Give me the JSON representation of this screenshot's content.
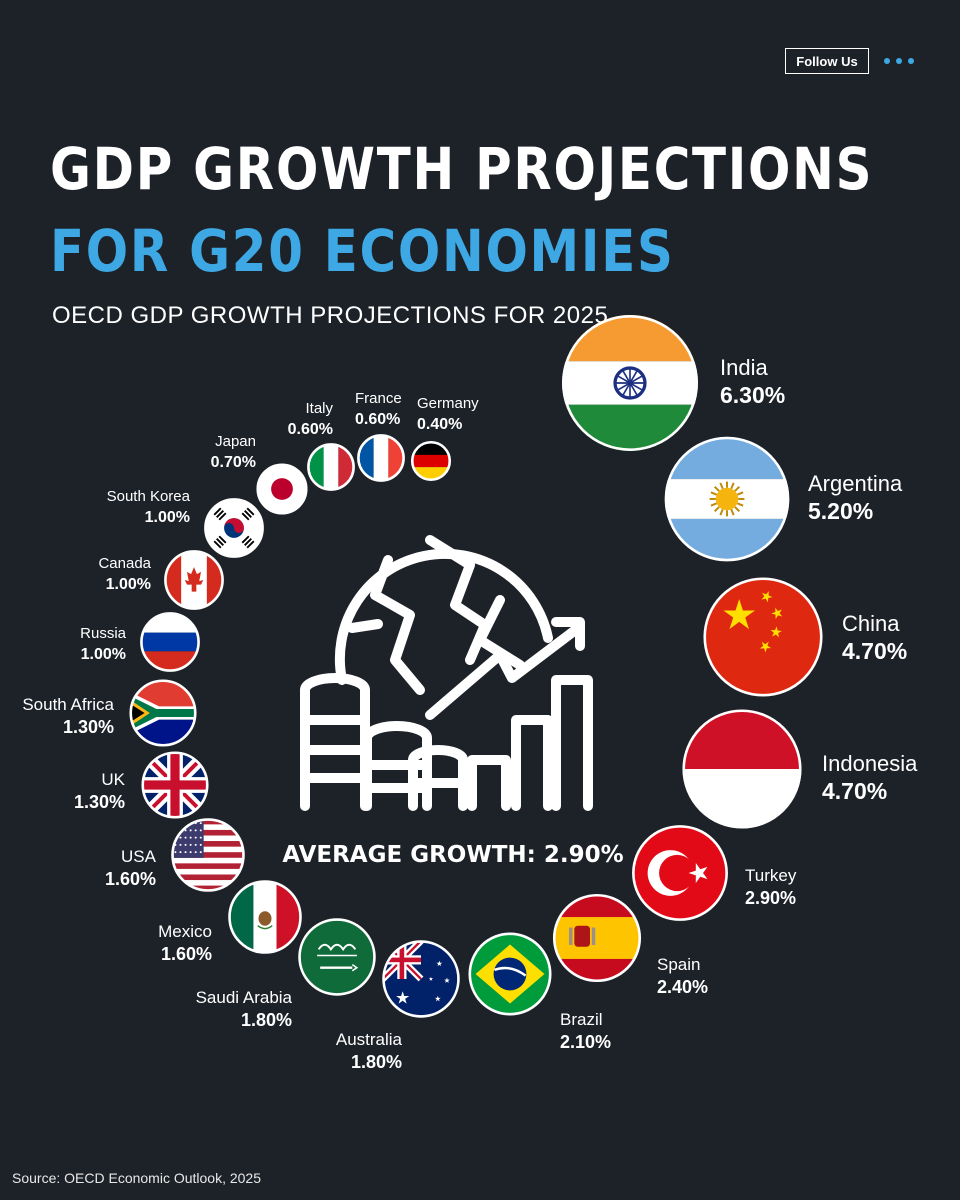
{
  "header": {
    "follow_label": "Follow Us",
    "more_icon": "more-dots-icon"
  },
  "title": {
    "line1": "GDP GROWTH PROJECTIONS",
    "line2": "FOR G20 ECONOMIES",
    "subtitle": "OECD GDP GROWTH PROJECTIONS FOR 2025"
  },
  "colors": {
    "background": "#1d2229",
    "accent": "#3ea8e5",
    "text": "#ffffff"
  },
  "center": {
    "icon": "globe-coins-growth-icon",
    "average_label": "AVERAGE GROWTH: 2.90%"
  },
  "chart_data": {
    "type": "bubble",
    "unit": "%",
    "average": 2.9,
    "values": [
      {
        "country": "India",
        "value": 6.3,
        "label": "6.30%",
        "flag": "india"
      },
      {
        "country": "Argentina",
        "value": 5.2,
        "label": "5.20%",
        "flag": "argentina"
      },
      {
        "country": "China",
        "value": 4.7,
        "label": "4.70%",
        "flag": "china"
      },
      {
        "country": "Indonesia",
        "value": 4.7,
        "label": "4.70%",
        "flag": "indonesia"
      },
      {
        "country": "Turkey",
        "value": 2.9,
        "label": "2.90%",
        "flag": "turkey"
      },
      {
        "country": "Spain",
        "value": 2.4,
        "label": "2.40%",
        "flag": "spain"
      },
      {
        "country": "Brazil",
        "value": 2.1,
        "label": "2.10%",
        "flag": "brazil"
      },
      {
        "country": "Australia",
        "value": 1.8,
        "label": "1.80%",
        "flag": "australia"
      },
      {
        "country": "Saudi Arabia",
        "value": 1.8,
        "label": "1.80%",
        "flag": "saudi-arabia"
      },
      {
        "country": "Mexico",
        "value": 1.6,
        "label": "1.60%",
        "flag": "mexico"
      },
      {
        "country": "USA",
        "value": 1.6,
        "label": "1.60%",
        "flag": "usa"
      },
      {
        "country": "UK",
        "value": 1.3,
        "label": "1.30%",
        "flag": "uk"
      },
      {
        "country": "South Africa",
        "value": 1.3,
        "label": "1.30%",
        "flag": "south-africa"
      },
      {
        "country": "Russia",
        "value": 1.0,
        "label": "1.00%",
        "flag": "russia"
      },
      {
        "country": "Canada",
        "value": 1.0,
        "label": "1.00%",
        "flag": "canada"
      },
      {
        "country": "South Korea",
        "value": 1.0,
        "label": "1.00%",
        "flag": "south-korea"
      },
      {
        "country": "Japan",
        "value": 0.7,
        "label": "0.70%",
        "flag": "japan"
      },
      {
        "country": "Italy",
        "value": 0.6,
        "label": "0.60%",
        "flag": "italy"
      },
      {
        "country": "France",
        "value": 0.6,
        "label": "0.60%",
        "flag": "france"
      },
      {
        "country": "Germany",
        "value": 0.4,
        "label": "0.40%",
        "flag": "germany"
      }
    ]
  },
  "footer": {
    "source": "Source: OECD Economic Outlook, 2025"
  }
}
